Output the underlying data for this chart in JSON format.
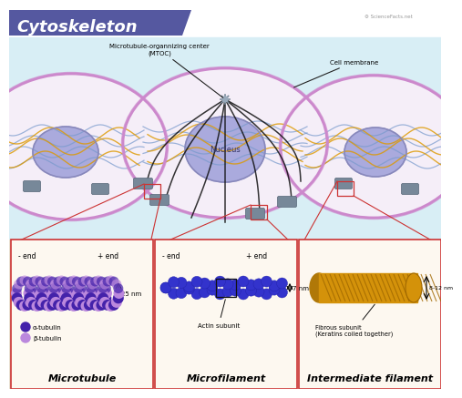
{
  "title": "Cytoskeleton",
  "title_bg": "#5558a0",
  "title_color": "#ffffff",
  "bg_top": "#d8eef5",
  "bg_bottom": "#e8e0d0",
  "cell_fill": "#f5eef8",
  "cell_membrane_color": "#cc88cc",
  "cell_membrane_lw": 2.2,
  "nucleus_color": "#aaaadd",
  "nucleus_outline": "#8888bb",
  "microfilament_color": "#3333cc",
  "intermediate_color": "#d4920a",
  "box_border_color": "#cc3333",
  "box_bg": "#fdf8f0",
  "alpha_tubulin_color": "#4422aa",
  "beta_tubulin_color": "#bb88dd",
  "wavy_blue": "#7799cc",
  "wavy_orange": "#dd9900",
  "connector_color": "#888899",
  "black_line": "#111111",
  "label_microtubule": "Microtubule",
  "label_microfilament": "Microfilament",
  "label_intermediate": "Intermediate filament",
  "annotation_mtoc": "Microtubule-organnizing center\n(MTOC)",
  "annotation_cell_membrane": "Cell membrane",
  "annotation_nucleus": "Nucleus",
  "annotation_actin": "Actin subunit",
  "annotation_fibrous": "Fibrous subunit\n(Keratins coiled together)",
  "dim_25nm": "25 nm",
  "dim_7nm": "7 nm",
  "dim_812nm": "8-12 nm",
  "minus_end": "- end",
  "plus_end": "+ end",
  "alpha_label": "α-tubulin",
  "beta_label": "β-tubulin"
}
